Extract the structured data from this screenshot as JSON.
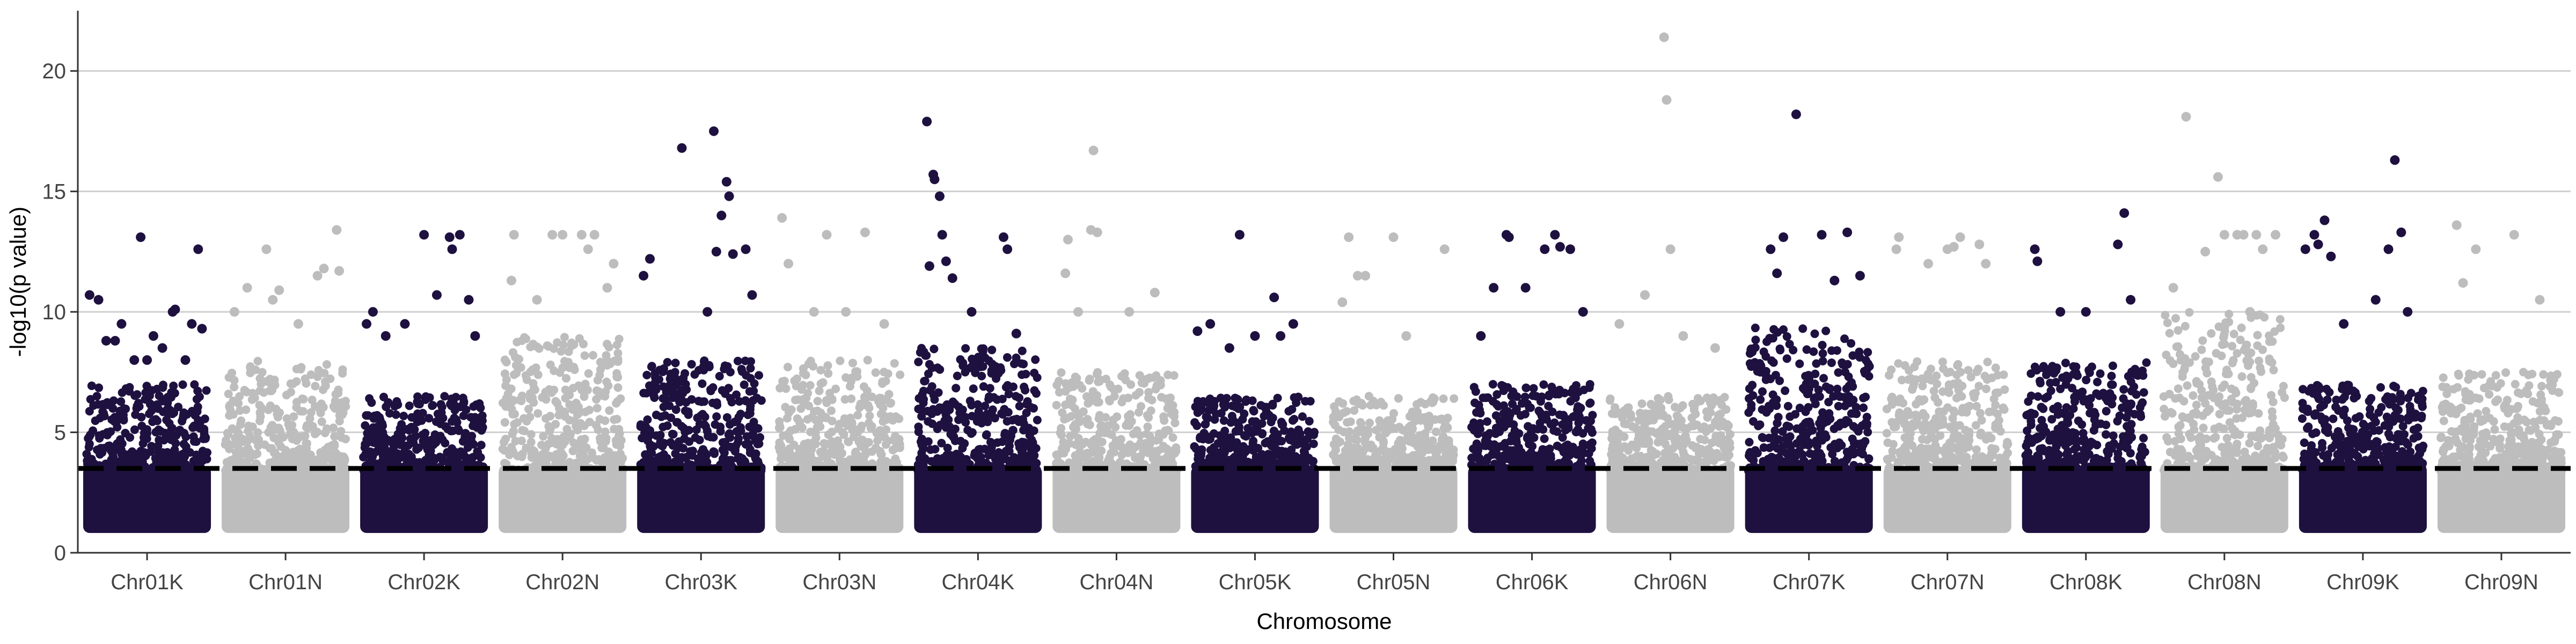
{
  "chart_data": {
    "type": "scatter",
    "subtype": "manhattan",
    "title": "",
    "xlabel": "Chromosome",
    "ylabel": "-log10(p value)",
    "ylim": [
      0,
      22.5
    ],
    "yticks": [
      0,
      5,
      10,
      15,
      20
    ],
    "grid": "horizontal major lines",
    "legend": "none",
    "colors": {
      "dark": "#1e1140",
      "light": "#bdbdbd",
      "threshold": "#000000",
      "grid": "#cfcfcf",
      "axis": "#333333"
    },
    "threshold": {
      "value": 3.5,
      "style": "dashed"
    },
    "categories": [
      "Chr01K",
      "Chr01N",
      "Chr02K",
      "Chr02N",
      "Chr03K",
      "Chr03N",
      "Chr04K",
      "Chr04N",
      "Chr05K",
      "Chr05N",
      "Chr06K",
      "Chr06N",
      "Chr07K",
      "Chr07N",
      "Chr08K",
      "Chr08N",
      "Chr09K",
      "Chr09N"
    ],
    "series": [
      {
        "chromosome": "Chr01K",
        "color": "dark",
        "band_max": 7.0,
        "peaks": [
          [
            0.05,
            10.7
          ],
          [
            0.12,
            10.5
          ],
          [
            0.18,
            8.8
          ],
          [
            0.25,
            8.8
          ],
          [
            0.3,
            9.5
          ],
          [
            0.4,
            8.0
          ],
          [
            0.45,
            13.1
          ],
          [
            0.5,
            8.0
          ],
          [
            0.55,
            9.0
          ],
          [
            0.62,
            8.5
          ],
          [
            0.7,
            10.0
          ],
          [
            0.72,
            10.1
          ],
          [
            0.8,
            8.0
          ],
          [
            0.85,
            9.5
          ],
          [
            0.9,
            12.6
          ],
          [
            0.93,
            9.3
          ]
        ]
      },
      {
        "chromosome": "Chr01N",
        "color": "light",
        "band_max": 8.0,
        "peaks": [
          [
            0.1,
            10.0
          ],
          [
            0.2,
            11.0
          ],
          [
            0.35,
            12.6
          ],
          [
            0.4,
            10.5
          ],
          [
            0.45,
            10.9
          ],
          [
            0.6,
            9.5
          ],
          [
            0.75,
            11.5
          ],
          [
            0.8,
            11.8
          ],
          [
            0.9,
            13.4
          ],
          [
            0.92,
            11.7
          ]
        ]
      },
      {
        "chromosome": "Chr02K",
        "color": "dark",
        "band_max": 6.5,
        "peaks": [
          [
            0.05,
            9.5
          ],
          [
            0.1,
            10.0
          ],
          [
            0.2,
            9.0
          ],
          [
            0.35,
            9.5
          ],
          [
            0.5,
            13.2
          ],
          [
            0.6,
            10.7
          ],
          [
            0.7,
            13.1
          ],
          [
            0.72,
            12.6
          ],
          [
            0.78,
            13.2
          ],
          [
            0.85,
            10.5
          ],
          [
            0.9,
            9.0
          ]
        ]
      },
      {
        "chromosome": "Chr02N",
        "color": "light",
        "band_max": 9.0,
        "peaks": [
          [
            0.1,
            11.3
          ],
          [
            0.12,
            13.2
          ],
          [
            0.3,
            10.5
          ],
          [
            0.42,
            13.2
          ],
          [
            0.5,
            13.2
          ],
          [
            0.65,
            13.2
          ],
          [
            0.7,
            12.6
          ],
          [
            0.75,
            13.2
          ],
          [
            0.85,
            11.0
          ],
          [
            0.9,
            12.0
          ]
        ]
      },
      {
        "chromosome": "Chr03K",
        "color": "dark",
        "band_max": 8.0,
        "peaks": [
          [
            0.05,
            11.5
          ],
          [
            0.1,
            12.2
          ],
          [
            0.35,
            16.8
          ],
          [
            0.55,
            10.0
          ],
          [
            0.6,
            17.5
          ],
          [
            0.62,
            12.5
          ],
          [
            0.66,
            14.0
          ],
          [
            0.7,
            15.4
          ],
          [
            0.72,
            14.8
          ],
          [
            0.75,
            12.4
          ],
          [
            0.85,
            12.6
          ],
          [
            0.9,
            10.7
          ]
        ]
      },
      {
        "chromosome": "Chr03N",
        "color": "light",
        "band_max": 8.0,
        "peaks": [
          [
            0.05,
            13.9
          ],
          [
            0.1,
            12.0
          ],
          [
            0.3,
            10.0
          ],
          [
            0.4,
            13.2
          ],
          [
            0.55,
            10.0
          ],
          [
            0.7,
            13.3
          ],
          [
            0.85,
            9.5
          ]
        ]
      },
      {
        "chromosome": "Chr04K",
        "color": "dark",
        "band_max": 8.5,
        "peaks": [
          [
            0.1,
            17.9
          ],
          [
            0.12,
            11.9
          ],
          [
            0.15,
            15.7
          ],
          [
            0.16,
            15.5
          ],
          [
            0.2,
            14.8
          ],
          [
            0.22,
            13.2
          ],
          [
            0.25,
            12.1
          ],
          [
            0.3,
            11.4
          ],
          [
            0.45,
            10.0
          ],
          [
            0.7,
            13.1
          ],
          [
            0.73,
            12.6
          ],
          [
            0.8,
            9.1
          ]
        ]
      },
      {
        "chromosome": "Chr04N",
        "color": "light",
        "band_max": 7.5,
        "peaks": [
          [
            0.1,
            11.6
          ],
          [
            0.12,
            13.0
          ],
          [
            0.2,
            10.0
          ],
          [
            0.3,
            13.4
          ],
          [
            0.32,
            16.7
          ],
          [
            0.35,
            13.3
          ],
          [
            0.6,
            10.0
          ],
          [
            0.8,
            10.8
          ]
        ]
      },
      {
        "chromosome": "Chr05K",
        "color": "dark",
        "band_max": 6.5,
        "peaks": [
          [
            0.05,
            9.2
          ],
          [
            0.15,
            9.5
          ],
          [
            0.3,
            8.5
          ],
          [
            0.38,
            13.2
          ],
          [
            0.5,
            9.0
          ],
          [
            0.65,
            10.6
          ],
          [
            0.7,
            9.0
          ],
          [
            0.8,
            9.5
          ]
        ]
      },
      {
        "chromosome": "Chr05N",
        "color": "light",
        "band_max": 6.5,
        "peaks": [
          [
            0.1,
            10.4
          ],
          [
            0.15,
            13.1
          ],
          [
            0.22,
            11.5
          ],
          [
            0.28,
            11.5
          ],
          [
            0.5,
            13.1
          ],
          [
            0.6,
            9.0
          ],
          [
            0.9,
            12.6
          ]
        ]
      },
      {
        "chromosome": "Chr06K",
        "color": "dark",
        "band_max": 7.0,
        "peaks": [
          [
            0.1,
            9.0
          ],
          [
            0.2,
            11.0
          ],
          [
            0.3,
            13.2
          ],
          [
            0.32,
            13.1
          ],
          [
            0.45,
            11.0
          ],
          [
            0.6,
            12.6
          ],
          [
            0.68,
            13.2
          ],
          [
            0.72,
            12.7
          ],
          [
            0.8,
            12.6
          ],
          [
            0.9,
            10.0
          ]
        ]
      },
      {
        "chromosome": "Chr06N",
        "color": "light",
        "band_max": 6.5,
        "peaks": [
          [
            0.1,
            9.5
          ],
          [
            0.3,
            10.7
          ],
          [
            0.45,
            21.4
          ],
          [
            0.47,
            18.8
          ],
          [
            0.5,
            12.6
          ],
          [
            0.6,
            9.0
          ],
          [
            0.85,
            8.5
          ]
        ]
      },
      {
        "chromosome": "Chr07K",
        "color": "dark",
        "band_max": 9.5,
        "peaks": [
          [
            0.2,
            12.6
          ],
          [
            0.25,
            11.6
          ],
          [
            0.3,
            13.1
          ],
          [
            0.4,
            18.2
          ],
          [
            0.6,
            13.2
          ],
          [
            0.8,
            13.3
          ],
          [
            0.7,
            11.3
          ],
          [
            0.9,
            11.5
          ]
        ]
      },
      {
        "chromosome": "Chr07N",
        "color": "light",
        "band_max": 8.0,
        "peaks": [
          [
            0.1,
            12.6
          ],
          [
            0.12,
            13.1
          ],
          [
            0.35,
            12.0
          ],
          [
            0.5,
            12.6
          ],
          [
            0.55,
            12.7
          ],
          [
            0.6,
            13.1
          ],
          [
            0.75,
            12.8
          ],
          [
            0.8,
            12.0
          ]
        ]
      },
      {
        "chromosome": "Chr08K",
        "color": "dark",
        "band_max": 8.0,
        "peaks": [
          [
            0.1,
            12.6
          ],
          [
            0.12,
            12.1
          ],
          [
            0.3,
            10.0
          ],
          [
            0.5,
            10.0
          ],
          [
            0.75,
            12.8
          ],
          [
            0.8,
            14.1
          ],
          [
            0.85,
            10.5
          ]
        ]
      },
      {
        "chromosome": "Chr08N",
        "color": "light",
        "band_max": 10.0,
        "peaks": [
          [
            0.1,
            11.0
          ],
          [
            0.2,
            18.1
          ],
          [
            0.35,
            12.5
          ],
          [
            0.45,
            15.6
          ],
          [
            0.5,
            13.2
          ],
          [
            0.6,
            13.2
          ],
          [
            0.65,
            13.2
          ],
          [
            0.7,
            10.0
          ],
          [
            0.75,
            13.2
          ],
          [
            0.8,
            12.6
          ],
          [
            0.9,
            13.2
          ]
        ]
      },
      {
        "chromosome": "Chr09K",
        "color": "dark",
        "band_max": 7.0,
        "peaks": [
          [
            0.05,
            12.6
          ],
          [
            0.12,
            13.2
          ],
          [
            0.15,
            12.8
          ],
          [
            0.2,
            13.8
          ],
          [
            0.25,
            12.3
          ],
          [
            0.35,
            9.5
          ],
          [
            0.6,
            10.5
          ],
          [
            0.7,
            12.6
          ],
          [
            0.75,
            16.3
          ],
          [
            0.8,
            13.3
          ],
          [
            0.85,
            10.0
          ]
        ]
      },
      {
        "chromosome": "Chr09N",
        "color": "light",
        "band_max": 7.5,
        "peaks": [
          [
            0.15,
            13.6
          ],
          [
            0.2,
            11.2
          ],
          [
            0.3,
            12.6
          ],
          [
            0.6,
            13.2
          ],
          [
            0.8,
            10.5
          ]
        ]
      }
    ]
  }
}
